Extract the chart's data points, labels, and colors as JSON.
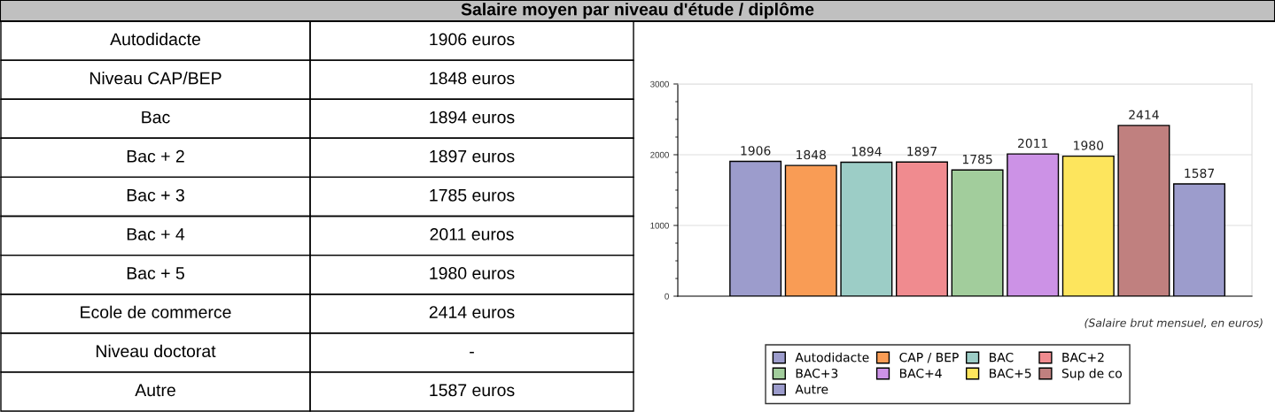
{
  "chart_data": {
    "type": "bar",
    "title": "Salaire moyen par niveau d'étude / diplôme",
    "categories": [
      null
    ],
    "series": [
      {
        "name": "Autodidacte",
        "color": "#9c9ccc",
        "values": [
          1906
        ]
      },
      {
        "name": "CAP / BEP",
        "color": "#f99c55",
        "values": [
          1848
        ]
      },
      {
        "name": "BAC",
        "color": "#9ccdc6",
        "values": [
          1894
        ]
      },
      {
        "name": "BAC+2",
        "color": "#f08b8f",
        "values": [
          1897
        ]
      },
      {
        "name": "BAC+3",
        "color": "#a2cd9c",
        "values": [
          1785
        ]
      },
      {
        "name": "BAC+4",
        "color": "#cc92e6",
        "values": [
          2011
        ]
      },
      {
        "name": "BAC+5",
        "color": "#fde55d",
        "values": [
          1980
        ]
      },
      {
        "name": "Sup de co",
        "color": "#c0807f",
        "values": [
          2414
        ]
      },
      {
        "name": "Autre",
        "color": "#9c9ccc",
        "values": [
          1587
        ]
      }
    ],
    "ylim": [
      0,
      3000
    ],
    "yticks": [
      0,
      1000,
      2000,
      3000
    ],
    "grid": "y",
    "data_labels": true,
    "legend": "bottom",
    "tick_labels": "y",
    "annotations": [
      "Autodidacte",
      "1906 euros",
      "Niveau CAP/BEP",
      "1848 euros",
      "Bac",
      "1894 euros",
      "Bac + 2",
      "1897 euros",
      "Bac + 3",
      "1785 euros",
      "Bac + 4",
      "2011 euros",
      "Bac + 5",
      "1980 euros",
      "Ecole de commerce",
      "2414 euros",
      "Niveau doctorat",
      "-",
      "Autre",
      "1587 euros",
      "(Salaire brut mensuel, en euros)"
    ]
  }
}
